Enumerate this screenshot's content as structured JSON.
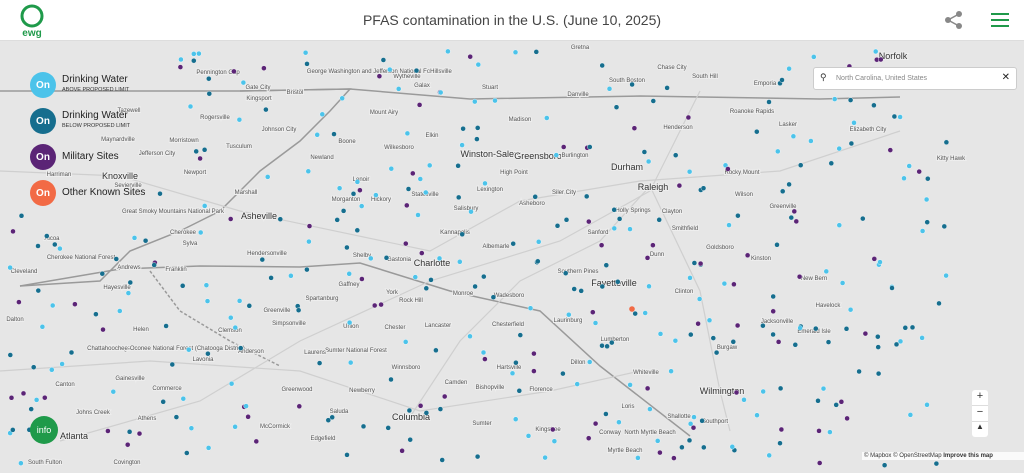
{
  "header": {
    "logo": "ewg",
    "title": "PFAS contamination in the U.S. (June 10, 2025)"
  },
  "legend": [
    {
      "toggle": "On",
      "label": "Drinking Water",
      "sublabel": "ABOVE PROPOSED LIMIT",
      "color": "#4cc3ea"
    },
    {
      "toggle": "On",
      "label": "Drinking Water",
      "sublabel": "BELOW PROPOSED LIMIT",
      "color": "#166e8e"
    },
    {
      "toggle": "On",
      "label": "Military Sites",
      "color": "#5b2476"
    },
    {
      "toggle": "On",
      "label": "Other Known Sites",
      "color": "#f26a45"
    }
  ],
  "search": {
    "value": "North Carolina, United States"
  },
  "info": "info",
  "attribution": {
    "mapbox": "© Mapbox",
    "osm": "© OpenStreetMap",
    "improve": "Improve this map"
  },
  "map": {
    "labels": [
      "Wytheville",
      "Gretna",
      "Chase City",
      "South Boston",
      "South Hill",
      "Norfolk",
      "Pennington Gap",
      "George Washington and Jefferson National Forests",
      "Hillsville",
      "Galax",
      "Stuart",
      "Danville",
      "Gate City",
      "Kingsport",
      "Bristol",
      "Emporia",
      "Roanoke Rapids",
      "Tazewell",
      "Rogersville",
      "Johnson City",
      "Mount Airy",
      "Madison",
      "Henderson",
      "Lasker",
      "Elizabeth City",
      "Morristown",
      "Maynardville",
      "Boone",
      "Elkin",
      "Jefferson City",
      "Tusculum",
      "Newland",
      "Wilkesboro",
      "Winston-Salem",
      "Greensboro",
      "Burlington",
      "Durham",
      "Rocky Mount",
      "Kitty Hawk",
      "Harriman",
      "Knoxville",
      "Newport",
      "Sevierville",
      "Marshall",
      "Lenoir",
      "High Point",
      "Statesville",
      "Lexington",
      "Siler City",
      "Raleigh",
      "Wilson",
      "Great Smoky Mountains National Park",
      "Morganton",
      "Hickory",
      "Salisbury",
      "Asheboro",
      "Holly Springs",
      "Clayton",
      "Greenville",
      "Asheville",
      "Kannapolis",
      "Sanford",
      "Smithfield",
      "Goldsboro",
      "Kinston",
      "Alcoa",
      "Cherokee",
      "Sylva",
      "Cherokee National Forest",
      "Hendersonville",
      "Shelby",
      "Gastonia",
      "Charlotte",
      "Albemarle",
      "Dunn",
      "Cleveland",
      "Andrews",
      "Franklin",
      "Southern Pines",
      "Hayesville",
      "Gaffney",
      "Monroe",
      "Fayetteville",
      "New Bern",
      "Clinton",
      "Wadesboro",
      "Havelock",
      "York",
      "Rock Hill",
      "Dalton",
      "Greenville",
      "Spartanburg",
      "Jacksonville",
      "Laurinburg",
      "Helen",
      "Clemson",
      "Simpsonville",
      "Union",
      "Chester",
      "Lancaster",
      "Chesterfield",
      "Emerald Isle",
      "Dahlonega",
      "Chattahoochee-Oconee National Forest (Chatooga District)",
      "Lumberton",
      "Sumter National Forest",
      "Anderson",
      "Burgaw",
      "Lavonia",
      "Laurens",
      "Dillon",
      "Hartsville",
      "Gainesville",
      "Winnsboro",
      "Whiteville",
      "Canton",
      "Camden",
      "Bishopville",
      "Florence",
      "Greenwood",
      "Commerce",
      "Newberry",
      "Wilmington",
      "Loris",
      "Johns Creek",
      "Athens",
      "Saluda",
      "Columbia",
      "Shallotte",
      "Southport",
      "Sumter",
      "Kingstree",
      "North Myrtle Beach",
      "McCormick",
      "Edgefield",
      "Atlanta",
      "Conway",
      "South Fulton",
      "Covington",
      "Myrtle Beach"
    ]
  }
}
